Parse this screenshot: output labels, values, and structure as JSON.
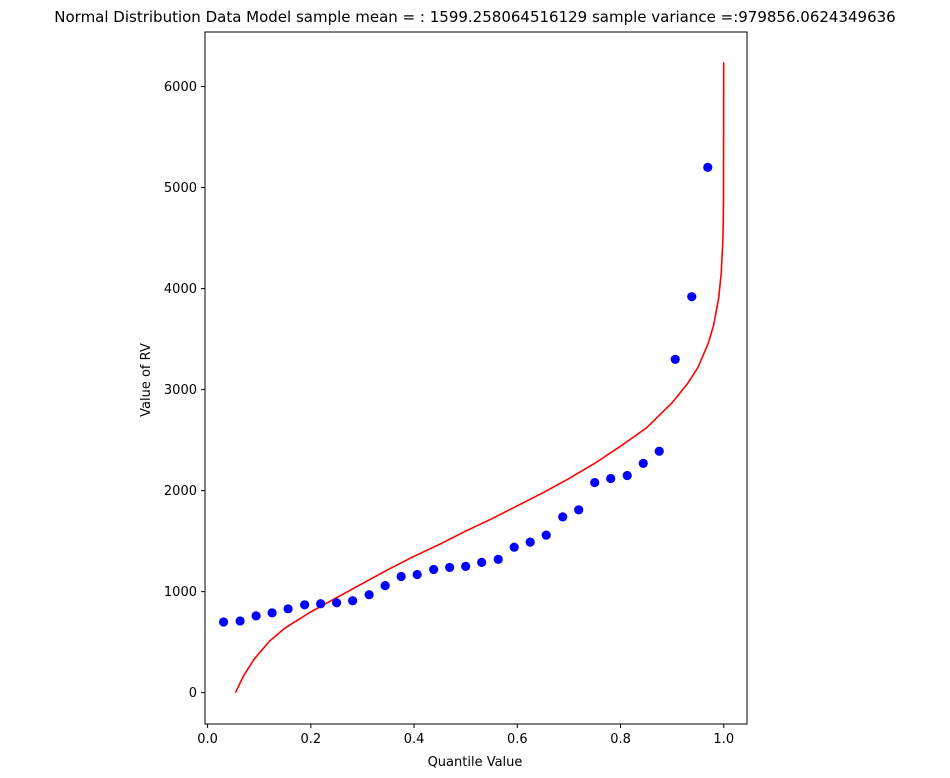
{
  "chart_data": {
    "type": "scatter",
    "title": "Normal Distribution Data Model sample mean = : 1599.258064516129 sample variance =:979856.0624349636",
    "xlabel": "Quantile Value",
    "ylabel": "Value of RV",
    "xlim": [
      -0.005,
      1.045
    ],
    "ylim": [
      -310,
      6540
    ],
    "xticks": [
      {
        "value": 0.0,
        "label": "0.0"
      },
      {
        "value": 0.2,
        "label": "0.2"
      },
      {
        "value": 0.4,
        "label": "0.4"
      },
      {
        "value": 0.6,
        "label": "0.6"
      },
      {
        "value": 0.8,
        "label": "0.8"
      },
      {
        "value": 1.0,
        "label": "1.0"
      }
    ],
    "yticks": [
      {
        "value": 0,
        "label": "0"
      },
      {
        "value": 1000,
        "label": "1000"
      },
      {
        "value": 2000,
        "label": "2000"
      },
      {
        "value": 3000,
        "label": "3000"
      },
      {
        "value": 4000,
        "label": "4000"
      },
      {
        "value": 5000,
        "label": "5000"
      },
      {
        "value": 6000,
        "label": "6000"
      }
    ],
    "grid": false,
    "series": [
      {
        "kind": "scatter",
        "color": "#0000ff",
        "x": [
          0.031,
          0.063,
          0.094,
          0.125,
          0.156,
          0.188,
          0.219,
          0.25,
          0.281,
          0.313,
          0.344,
          0.375,
          0.406,
          0.438,
          0.469,
          0.5,
          0.531,
          0.563,
          0.594,
          0.625,
          0.656,
          0.688,
          0.719,
          0.75,
          0.781,
          0.813,
          0.844,
          0.875,
          0.906,
          0.938,
          0.969
        ],
        "y": [
          700,
          710,
          760,
          790,
          830,
          870,
          880,
          890,
          910,
          970,
          1060,
          1150,
          1170,
          1220,
          1240,
          1250,
          1290,
          1320,
          1440,
          1490,
          1560,
          1740,
          1810,
          2080,
          2120,
          2150,
          2270,
          2390,
          3300,
          3920,
          5200
        ]
      },
      {
        "kind": "line",
        "color": "#ff0000",
        "x": [
          0.054,
          0.07,
          0.09,
          0.12,
          0.15,
          0.2,
          0.25,
          0.3,
          0.35,
          0.4,
          0.45,
          0.5,
          0.55,
          0.6,
          0.65,
          0.7,
          0.75,
          0.8,
          0.85,
          0.9,
          0.93,
          0.95,
          0.97,
          0.98,
          0.99,
          0.995,
          0.998,
          0.999,
          0.9995,
          0.99985
        ],
        "y": [
          0,
          170,
          330,
          510,
          640,
          800,
          940,
          1080,
          1220,
          1350,
          1470,
          1600,
          1720,
          1850,
          1980,
          2120,
          2270,
          2440,
          2620,
          2870,
          3060,
          3220,
          3460,
          3630,
          3900,
          4150,
          4450,
          4660,
          4860,
          6240
        ]
      }
    ]
  }
}
